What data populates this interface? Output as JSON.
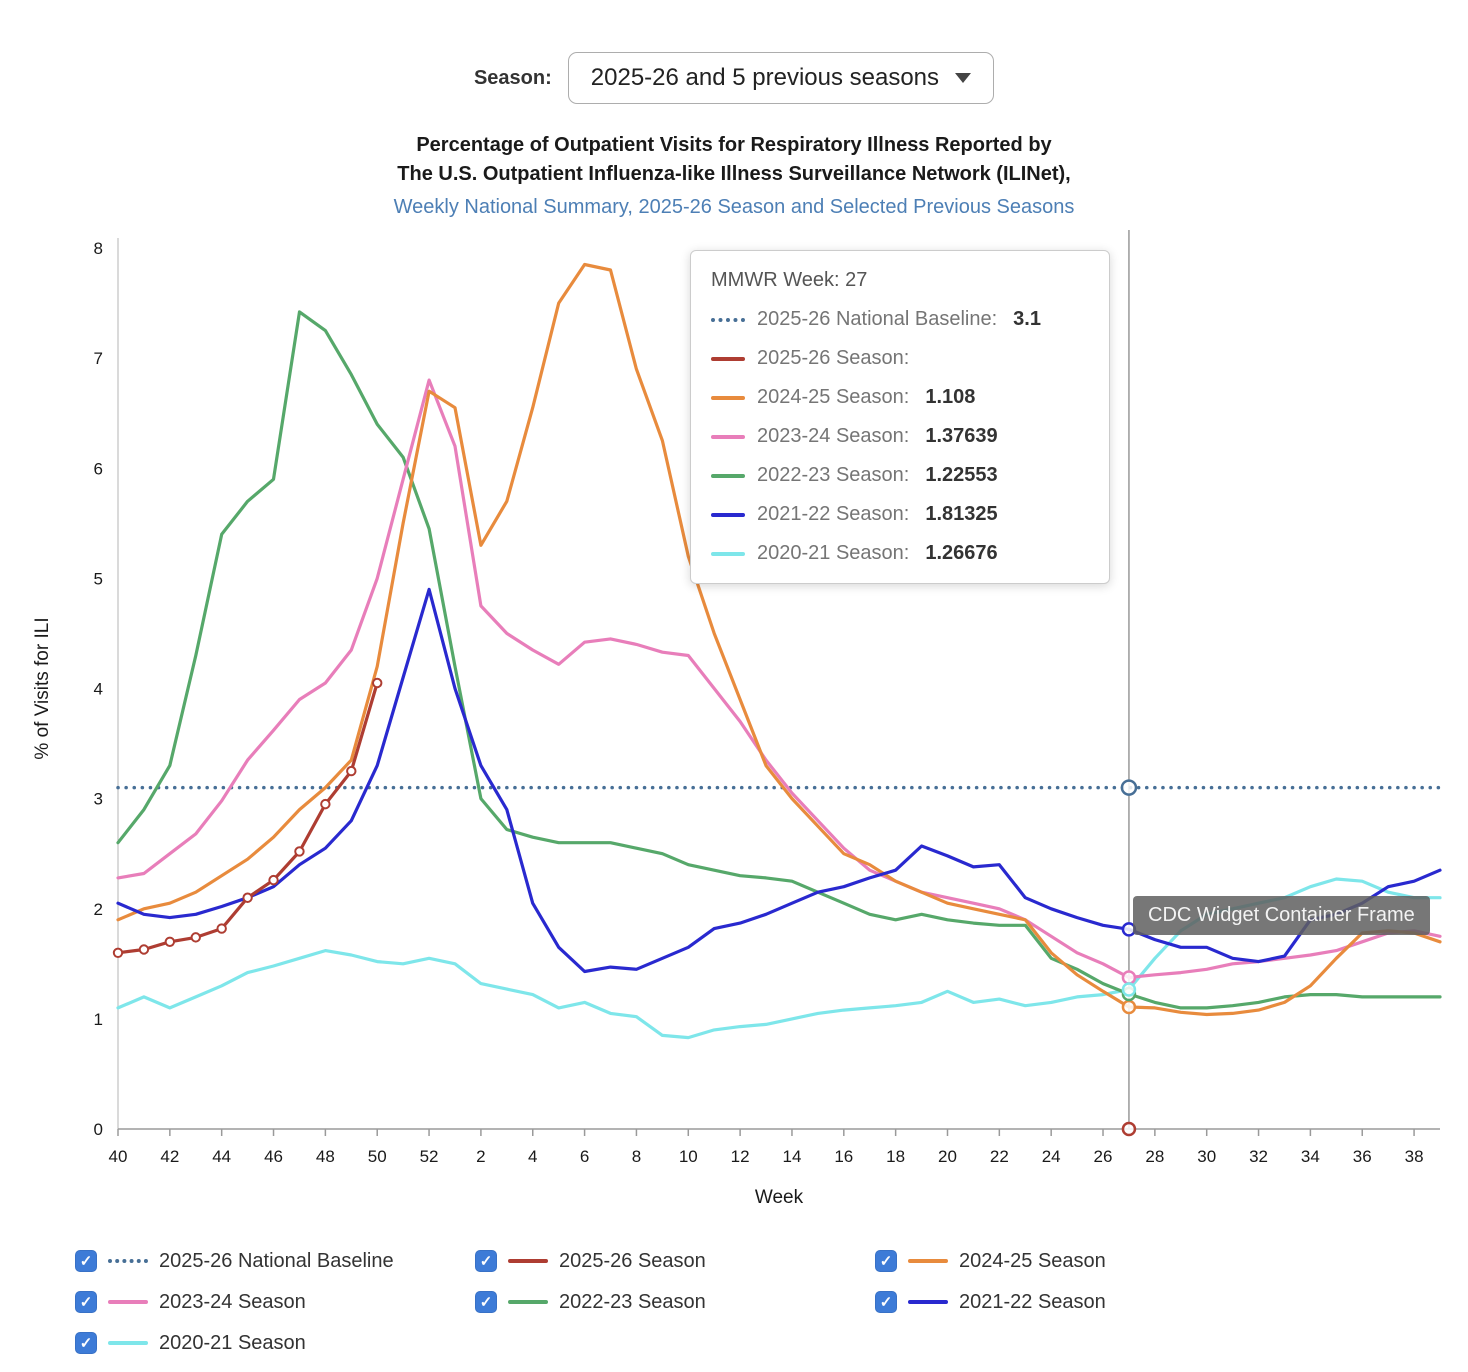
{
  "season_selector": {
    "label": "Season:",
    "value": "2025-26 and 5 previous seasons"
  },
  "title": {
    "line1": "Percentage of Outpatient Visits for Respiratory Illness Reported by",
    "line2": "The U.S. Outpatient Influenza-like Illness Surveillance Network (ILINet),",
    "line3": "Weekly National Summary, 2025-26 Season and Selected Previous Seasons"
  },
  "tooltip": {
    "heading_label": "MMWR Week:",
    "week": "27",
    "rows": [
      {
        "label": "2025-26 National Baseline:",
        "value": "3.1",
        "color": "#476f96",
        "style": "dotted"
      },
      {
        "label": "2025-26 Season:",
        "value": "",
        "color": "#ae3d32",
        "style": "solid"
      },
      {
        "label": "2024-25 Season:",
        "value": "1.108",
        "color": "#e88b3d",
        "style": "solid"
      },
      {
        "label": "2023-24 Season:",
        "value": "1.37639",
        "color": "#e87eba",
        "style": "solid"
      },
      {
        "label": "2022-23 Season:",
        "value": "1.22553",
        "color": "#56a86a",
        "style": "solid"
      },
      {
        "label": "2021-22 Season:",
        "value": "1.81325",
        "color": "#2929cf",
        "style": "solid"
      },
      {
        "label": "2020-21 Season:",
        "value": "1.26676",
        "color": "#7ee6ea",
        "style": "solid"
      }
    ]
  },
  "widget_frame_label": "CDC Widget Container Frame",
  "legend": {
    "items": [
      {
        "label": "2025-26 National Baseline",
        "color": "#476f96",
        "style": "dotted",
        "checked": true
      },
      {
        "label": "2025-26 Season",
        "color": "#ae3d32",
        "style": "solid",
        "checked": true
      },
      {
        "label": "2024-25 Season",
        "color": "#e88b3d",
        "style": "solid",
        "checked": true
      },
      {
        "label": "2023-24 Season",
        "color": "#e87eba",
        "style": "solid",
        "checked": true
      },
      {
        "label": "2022-23 Season",
        "color": "#56a86a",
        "style": "solid",
        "checked": true
      },
      {
        "label": "2021-22 Season",
        "color": "#2929cf",
        "style": "solid",
        "checked": true
      },
      {
        "label": "2020-21 Season",
        "color": "#7ee6ea",
        "style": "solid",
        "checked": true
      }
    ]
  },
  "chart_data": {
    "type": "line",
    "xlabel": "Week",
    "ylabel": "% of Visits for ILI",
    "ylim": [
      0,
      8
    ],
    "y_ticks": [
      0,
      1,
      2,
      3,
      4,
      5,
      6,
      7,
      8
    ],
    "weeks": [
      "40",
      "41",
      "42",
      "43",
      "44",
      "45",
      "46",
      "47",
      "48",
      "49",
      "50",
      "51",
      "52",
      "1",
      "2",
      "3",
      "4",
      "5",
      "6",
      "7",
      "8",
      "9",
      "10",
      "11",
      "12",
      "13",
      "14",
      "15",
      "16",
      "17",
      "18",
      "19",
      "20",
      "21",
      "22",
      "23",
      "24",
      "25",
      "26",
      "27",
      "28",
      "29",
      "30",
      "31",
      "32",
      "33",
      "34",
      "35",
      "36",
      "37",
      "38",
      "39"
    ],
    "marker_week": "27",
    "baseline": {
      "name": "2025-26 National Baseline",
      "value": 3.1,
      "color": "#476f96",
      "style": "dotted"
    },
    "series": [
      {
        "name": "2025-26 Season",
        "color": "#ae3d32",
        "markers": true,
        "values": [
          1.6,
          1.63,
          1.7,
          1.74,
          1.82,
          2.1,
          2.26,
          2.52,
          2.95,
          3.25,
          4.05,
          null,
          null,
          null,
          null,
          null,
          null,
          null,
          null,
          null,
          null,
          null,
          null,
          null,
          null,
          null,
          null,
          null,
          null,
          null,
          null,
          null,
          null,
          null,
          null,
          null,
          null,
          null,
          null,
          null,
          null,
          null,
          null,
          null,
          null,
          null,
          null,
          null,
          null,
          null,
          null,
          null
        ]
      },
      {
        "name": "2024-25 Season",
        "color": "#e88b3d",
        "markers": false,
        "values": [
          1.9,
          2.0,
          2.05,
          2.15,
          2.3,
          2.45,
          2.65,
          2.9,
          3.1,
          3.35,
          4.2,
          5.5,
          6.7,
          6.55,
          5.3,
          5.7,
          6.55,
          7.5,
          7.85,
          7.8,
          6.9,
          6.25,
          5.2,
          4.5,
          3.9,
          3.3,
          3.0,
          2.75,
          2.5,
          2.4,
          2.25,
          2.15,
          2.05,
          2.0,
          1.95,
          1.9,
          1.6,
          1.4,
          1.25,
          1.108,
          1.1,
          1.06,
          1.04,
          1.05,
          1.08,
          1.15,
          1.3,
          1.55,
          1.78,
          1.8,
          1.78,
          1.7
        ]
      },
      {
        "name": "2023-24 Season",
        "color": "#e87eba",
        "markers": false,
        "values": [
          2.28,
          2.32,
          2.5,
          2.68,
          2.98,
          3.35,
          3.62,
          3.9,
          4.05,
          4.35,
          5.0,
          5.9,
          6.8,
          6.2,
          4.75,
          4.5,
          4.35,
          4.22,
          4.42,
          4.45,
          4.4,
          4.33,
          4.3,
          4.0,
          3.7,
          3.35,
          3.05,
          2.8,
          2.55,
          2.35,
          2.25,
          2.15,
          2.1,
          2.05,
          2.0,
          1.9,
          1.75,
          1.6,
          1.5,
          1.376,
          1.4,
          1.42,
          1.45,
          1.5,
          1.52,
          1.55,
          1.58,
          1.62,
          1.7,
          1.78,
          1.8,
          1.75
        ]
      },
      {
        "name": "2022-23 Season",
        "color": "#56a86a",
        "markers": false,
        "values": [
          2.6,
          2.9,
          3.3,
          4.3,
          5.4,
          5.7,
          5.9,
          7.42,
          7.25,
          6.85,
          6.4,
          6.1,
          5.45,
          4.2,
          3.0,
          2.72,
          2.65,
          2.6,
          2.6,
          2.6,
          2.55,
          2.5,
          2.4,
          2.35,
          2.3,
          2.28,
          2.25,
          2.15,
          2.05,
          1.95,
          1.9,
          1.95,
          1.9,
          1.87,
          1.85,
          1.85,
          1.55,
          1.45,
          1.32,
          1.226,
          1.15,
          1.1,
          1.1,
          1.12,
          1.15,
          1.2,
          1.22,
          1.22,
          1.2,
          1.2,
          1.2,
          1.2
        ]
      },
      {
        "name": "2021-22 Season",
        "color": "#2929cf",
        "markers": false,
        "values": [
          2.05,
          1.95,
          1.92,
          1.95,
          2.02,
          2.1,
          2.2,
          2.4,
          2.55,
          2.8,
          3.3,
          4.1,
          4.9,
          4.0,
          3.3,
          2.9,
          2.05,
          1.65,
          1.43,
          1.47,
          1.45,
          1.55,
          1.65,
          1.82,
          1.87,
          1.95,
          2.05,
          2.15,
          2.2,
          2.28,
          2.35,
          2.57,
          2.48,
          2.38,
          2.4,
          2.1,
          2.0,
          1.92,
          1.85,
          1.813,
          1.72,
          1.65,
          1.65,
          1.55,
          1.52,
          1.57,
          1.9,
          1.95,
          2.05,
          2.2,
          2.25,
          2.35
        ]
      },
      {
        "name": "2020-21 Season",
        "color": "#7ee6ea",
        "markers": false,
        "values": [
          1.1,
          1.2,
          1.1,
          1.2,
          1.3,
          1.42,
          1.48,
          1.55,
          1.62,
          1.58,
          1.52,
          1.5,
          1.55,
          1.5,
          1.32,
          1.27,
          1.22,
          1.1,
          1.15,
          1.05,
          1.02,
          0.85,
          0.83,
          0.9,
          0.93,
          0.95,
          1.0,
          1.05,
          1.08,
          1.1,
          1.12,
          1.15,
          1.25,
          1.15,
          1.18,
          1.12,
          1.15,
          1.2,
          1.22,
          1.267,
          1.55,
          1.8,
          1.95,
          2.0,
          2.05,
          2.1,
          2.2,
          2.27,
          2.25,
          2.15,
          2.1,
          2.1
        ]
      }
    ]
  }
}
